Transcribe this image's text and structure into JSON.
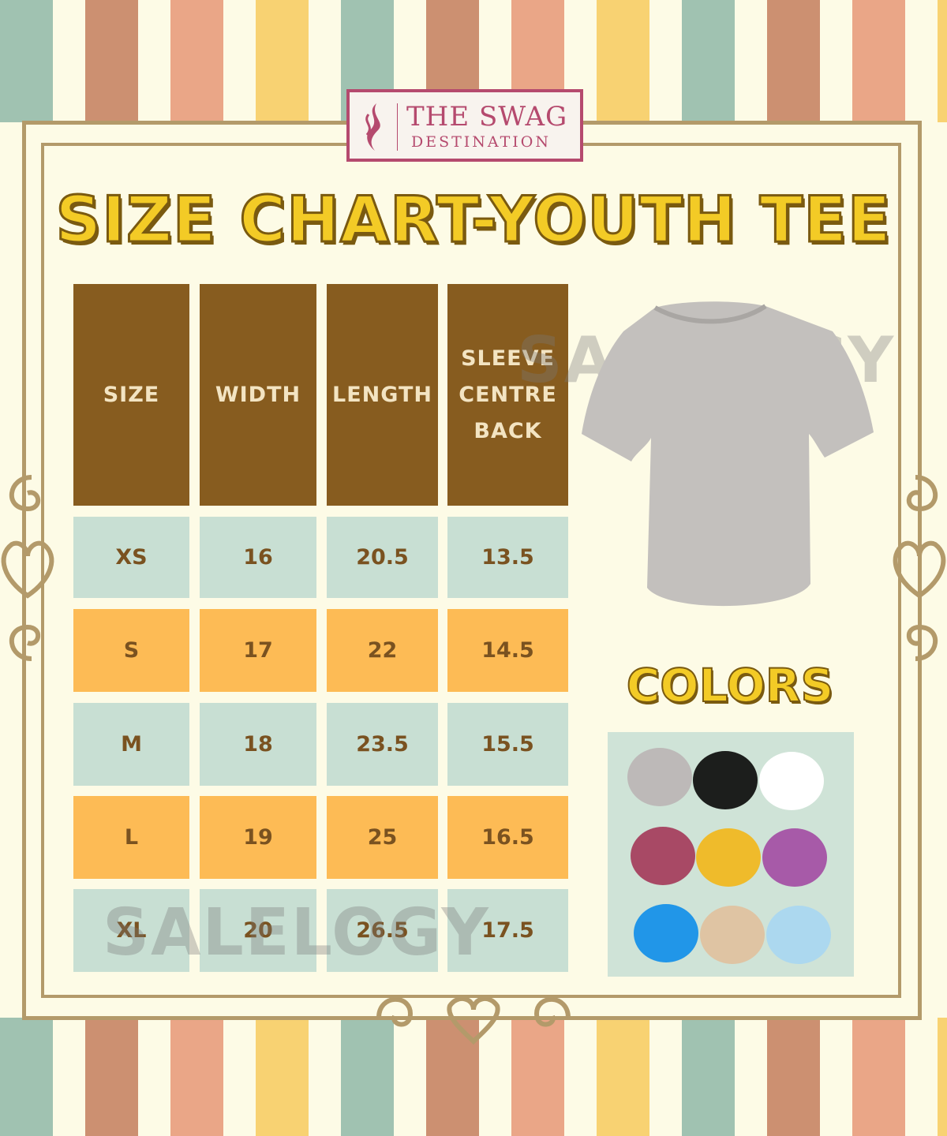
{
  "brand": {
    "line1": "THE SWAG",
    "line2": "DESTINATION",
    "color": "#b54a6e"
  },
  "title": "SIZE CHART-YOUTH TEE",
  "watermark": "SALELOGY",
  "table": {
    "headers": [
      "SIZE",
      "WIDTH",
      "LENGTH",
      "SLEEVE CENTRE BACK"
    ],
    "rows": [
      [
        "XS",
        "16",
        "20.5",
        "13.5"
      ],
      [
        "S",
        "17",
        "22",
        "14.5"
      ],
      [
        "M",
        "18",
        "23.5",
        "15.5"
      ],
      [
        "L",
        "19",
        "25",
        "16.5"
      ],
      [
        "XL",
        "20",
        "26.5",
        "17.5"
      ]
    ]
  },
  "product_image": "gray-tshirt",
  "colors_title": "COLORS",
  "colors": [
    "#bdb9b8",
    "#1c1e1c",
    "#ffffff",
    "#a84965",
    "#efbb2b",
    "#a75aa8",
    "#2196e8",
    "#dfc4a3",
    "#acd8ef"
  ],
  "theme": {
    "header_bg": "#875c1f",
    "row_teal": "#c8dfd3",
    "row_orange": "#fdbb55",
    "title_yellow": "#f3cb26",
    "frame": "#b39a6a"
  }
}
